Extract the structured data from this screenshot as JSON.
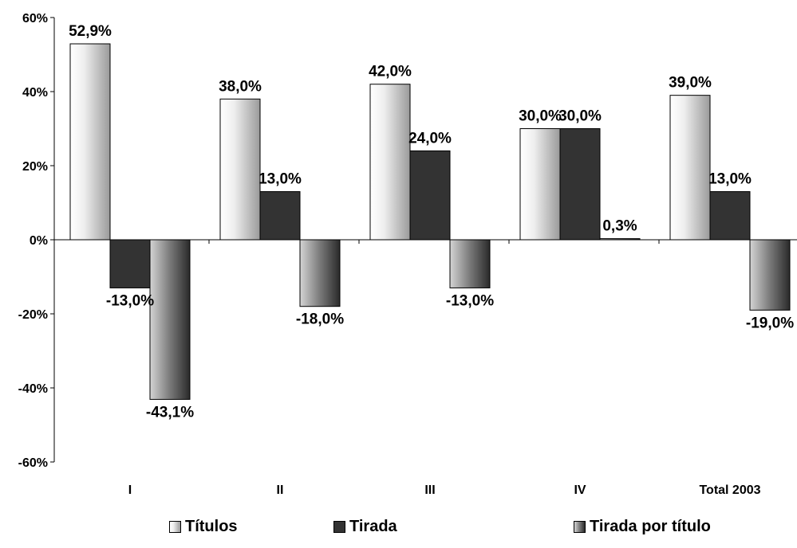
{
  "chart_data": {
    "type": "bar",
    "categories": [
      "I",
      "II",
      "III",
      "IV",
      "Total 2003"
    ],
    "series": [
      {
        "name": "Títulos",
        "values": [
          52.9,
          38.0,
          42.0,
          30.0,
          39.0
        ],
        "labels": [
          "52,9%",
          "38,0%",
          "42,0%",
          "30,0%",
          "39,0%"
        ]
      },
      {
        "name": "Tirada",
        "values": [
          -13.0,
          13.0,
          24.0,
          30.0,
          13.0
        ],
        "labels": [
          "-13,0%",
          "13,0%",
          "24,0%",
          "30,0%",
          "13,0%"
        ]
      },
      {
        "name": "Tirada por título",
        "values": [
          -43.1,
          -18.0,
          -13.0,
          0.3,
          -19.0
        ],
        "labels": [
          "-43,1%",
          "-18,0%",
          "-13,0%",
          "0,3%",
          "-19,0%"
        ]
      }
    ],
    "yticks": [
      60,
      40,
      20,
      0,
      -20,
      -40,
      -60
    ],
    "ytick_labels": [
      "60%",
      "40%",
      "20%",
      "0%",
      "-20%",
      "-40%",
      "-60%"
    ],
    "ylim": [
      -60,
      60
    ],
    "grid": false,
    "legend_position": "bottom",
    "colors": {
      "titulos_light": "#ffffff",
      "titulos_dark": "#9a9a9a",
      "tirada": "#333333",
      "tpt_light": "#cccccc",
      "tpt_dark": "#2a2a2a"
    }
  }
}
